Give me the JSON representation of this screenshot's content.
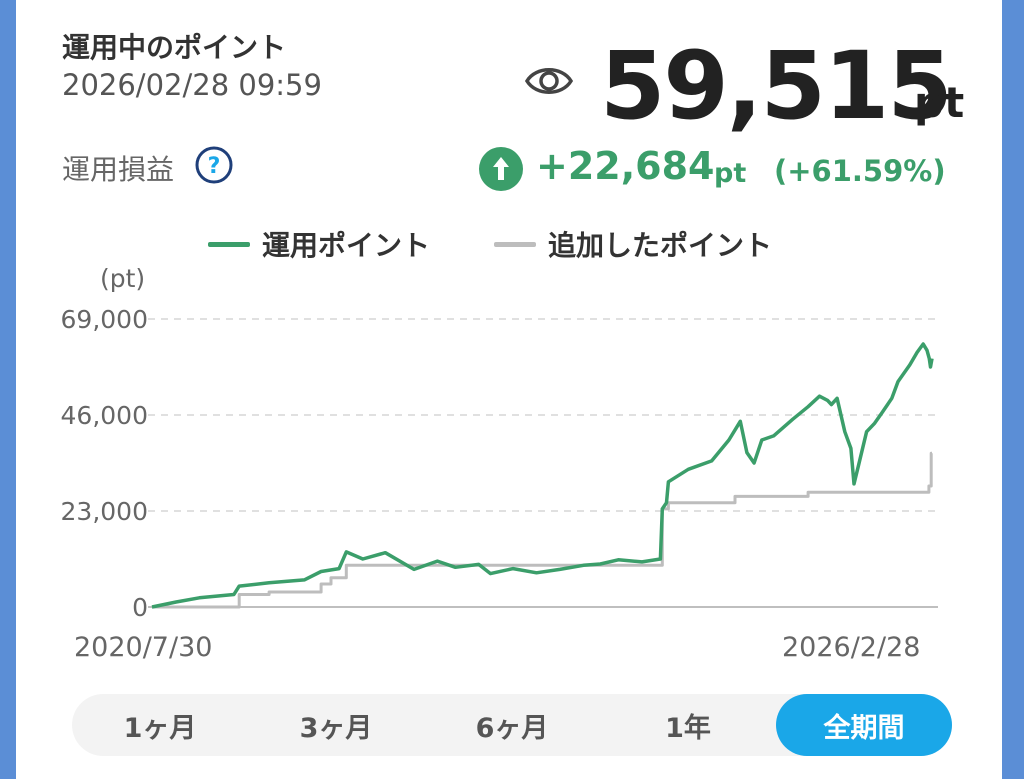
{
  "header": {
    "title": "運用中のポイント",
    "datetime": "2026/02/28 09:59",
    "total_value": "59,515",
    "total_unit": "pt",
    "eye_icon": "eye-icon"
  },
  "profit": {
    "label": "運用損益",
    "help_icon": "question-circle-icon",
    "arrow_icon": "up-arrow-circle-icon",
    "amount": "+22,684",
    "unit": "pt",
    "percent": "(+61.59%)"
  },
  "colors": {
    "accent_green": "#3b9e6a",
    "added_gray": "#bdbdbd",
    "active_tab": "#1aa7e8",
    "frame_blue": "#5b8ed6"
  },
  "tabs": {
    "items": [
      {
        "label": "1ヶ月"
      },
      {
        "label": "3ヶ月"
      },
      {
        "label": "6ヶ月"
      },
      {
        "label": "1年"
      },
      {
        "label": "全期間"
      }
    ],
    "active_index": 4
  },
  "chart_data": {
    "type": "line",
    "unit_label": "(pt)",
    "x_range": [
      "2020/7/30",
      "2026/2/28"
    ],
    "x_tick_labels": [
      "2020/7/30",
      "2026/2/28"
    ],
    "y_ticks": [
      0,
      23000,
      46000,
      69000
    ],
    "y_tick_labels": [
      "0",
      "23,000",
      "46,000",
      "69,000"
    ],
    "ylim": [
      0,
      69000
    ],
    "grid": true,
    "legend_position": "top",
    "series": [
      {
        "name": "運用ポイント",
        "color": "#3b9e6a",
        "points": [
          [
            "2020-07-30",
            0
          ],
          [
            "2020-10-01",
            1200
          ],
          [
            "2020-12-01",
            2200
          ],
          [
            "2021-03-01",
            3000
          ],
          [
            "2021-03-15",
            5000
          ],
          [
            "2021-06-01",
            5800
          ],
          [
            "2021-09-01",
            6500
          ],
          [
            "2021-10-15",
            8500
          ],
          [
            "2021-12-01",
            9200
          ],
          [
            "2021-12-20",
            13200
          ],
          [
            "2022-02-01",
            11500
          ],
          [
            "2022-04-01",
            13000
          ],
          [
            "2022-06-15",
            9000
          ],
          [
            "2022-08-15",
            11000
          ],
          [
            "2022-10-01",
            9500
          ],
          [
            "2022-12-01",
            10200
          ],
          [
            "2023-01-01",
            8000
          ],
          [
            "2023-03-01",
            9200
          ],
          [
            "2023-05-01",
            8200
          ],
          [
            "2023-07-01",
            9000
          ],
          [
            "2023-09-01",
            10000
          ],
          [
            "2023-10-15",
            10300
          ],
          [
            "2023-12-01",
            11300
          ],
          [
            "2024-02-01",
            10800
          ],
          [
            "2024-03-20",
            11500
          ],
          [
            "2024-03-25",
            23500
          ],
          [
            "2024-04-05",
            25000
          ],
          [
            "2024-04-10",
            30000
          ],
          [
            "2024-06-01",
            33000
          ],
          [
            "2024-08-01",
            35000
          ],
          [
            "2024-09-15",
            40000
          ],
          [
            "2024-10-15",
            44500
          ],
          [
            "2024-11-01",
            37000
          ],
          [
            "2024-11-20",
            34500
          ],
          [
            "2024-12-10",
            40000
          ],
          [
            "2025-01-10",
            41000
          ],
          [
            "2025-03-01",
            45000
          ],
          [
            "2025-04-10",
            48000
          ],
          [
            "2025-05-10",
            50500
          ],
          [
            "2025-05-31",
            49500
          ],
          [
            "2025-06-10",
            48500
          ],
          [
            "2025-06-25",
            50000
          ],
          [
            "2025-07-15",
            42000
          ],
          [
            "2025-07-31",
            38000
          ],
          [
            "2025-08-08",
            29500
          ],
          [
            "2025-08-20",
            34000
          ],
          [
            "2025-09-10",
            42000
          ],
          [
            "2025-10-01",
            44000
          ],
          [
            "2025-10-20",
            46500
          ],
          [
            "2025-11-15",
            50000
          ],
          [
            "2025-12-01",
            54000
          ],
          [
            "2026-01-01",
            58000
          ],
          [
            "2026-01-20",
            61000
          ],
          [
            "2026-02-05",
            63000
          ],
          [
            "2026-02-15",
            61500
          ],
          [
            "2026-02-21",
            59500
          ],
          [
            "2026-02-24",
            57500
          ],
          [
            "2026-02-28",
            59515
          ]
        ]
      },
      {
        "name": "追加したポイント",
        "color": "#bdbdbd",
        "points": [
          [
            "2020-07-30",
            0
          ],
          [
            "2021-03-15",
            0
          ],
          [
            "2021-03-15",
            3000
          ],
          [
            "2021-06-01",
            3000
          ],
          [
            "2021-06-01",
            3600
          ],
          [
            "2021-10-15",
            3600
          ],
          [
            "2021-10-15",
            5500
          ],
          [
            "2021-11-10",
            5500
          ],
          [
            "2021-11-10",
            7000
          ],
          [
            "2021-12-20",
            7000
          ],
          [
            "2021-12-20",
            10000
          ],
          [
            "2024-03-25",
            10000
          ],
          [
            "2024-03-25",
            23500
          ],
          [
            "2024-04-10",
            23500
          ],
          [
            "2024-04-10",
            25000
          ],
          [
            "2024-10-01",
            25000
          ],
          [
            "2024-10-01",
            26500
          ],
          [
            "2025-04-10",
            26500
          ],
          [
            "2025-04-10",
            27500
          ],
          [
            "2026-02-20",
            27500
          ],
          [
            "2026-02-20",
            29000
          ],
          [
            "2026-02-26",
            29000
          ],
          [
            "2026-02-26",
            36831
          ],
          [
            "2026-02-28",
            36831
          ]
        ]
      }
    ]
  }
}
